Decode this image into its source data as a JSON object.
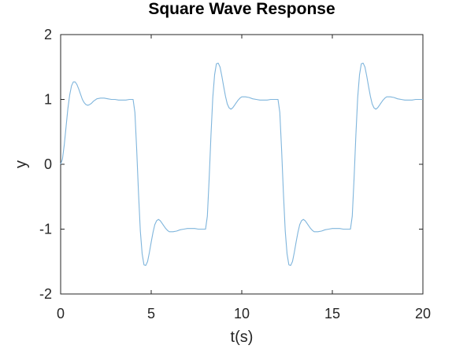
{
  "chart_data": {
    "type": "line",
    "title": "Square Wave Response",
    "xlabel": "t(s)",
    "ylabel": "y",
    "xlim": [
      0,
      20
    ],
    "ylim": [
      -2,
      2
    ],
    "xticks": [
      0,
      5,
      10,
      15,
      20
    ],
    "yticks": [
      -2,
      -1,
      0,
      1,
      2
    ],
    "xtick_labels": [
      "0",
      "5",
      "10",
      "15",
      "20"
    ],
    "ytick_labels": [
      "-2",
      "-1",
      "0",
      "1",
      "2"
    ],
    "grid": false,
    "legend": "none",
    "line_color": "#7fb5dc",
    "series": [
      {
        "x": [
          0,
          0.1,
          0.2,
          0.3,
          0.4,
          0.5,
          0.6,
          0.7,
          0.8,
          0.9,
          1.0,
          1.1,
          1.2,
          1.3,
          1.4,
          1.5,
          1.6,
          1.7,
          1.8,
          1.9,
          2.0,
          2.2,
          2.4,
          2.6,
          2.8,
          3.0,
          3.2,
          3.4,
          3.6,
          3.8,
          4.0,
          4.1,
          4.2,
          4.3,
          4.4,
          4.5,
          4.6,
          4.7,
          4.8,
          4.9,
          5.0,
          5.1,
          5.2,
          5.3,
          5.4,
          5.5,
          5.6,
          5.7,
          5.8,
          5.9,
          6.0,
          6.2,
          6.4,
          6.6,
          6.8,
          7.0,
          7.2,
          7.4,
          7.6,
          7.8,
          8.0,
          8.1,
          8.2,
          8.3,
          8.4,
          8.5,
          8.6,
          8.7,
          8.8,
          8.9,
          9.0,
          9.1,
          9.2,
          9.3,
          9.4,
          9.5,
          9.6,
          9.7,
          9.8,
          9.9,
          10.0,
          10.2,
          10.4,
          10.6,
          10.8,
          11.0,
          11.2,
          11.4,
          11.6,
          11.8,
          12.0,
          12.1,
          12.2,
          12.3,
          12.4,
          12.5,
          12.6,
          12.7,
          12.8,
          12.9,
          13.0,
          13.1,
          13.2,
          13.3,
          13.4,
          13.5,
          13.6,
          13.7,
          13.8,
          13.9,
          14.0,
          14.2,
          14.4,
          14.6,
          14.8,
          15.0,
          15.2,
          15.4,
          15.6,
          15.8,
          16.0,
          16.1,
          16.2,
          16.3,
          16.4,
          16.5,
          16.6,
          16.7,
          16.8,
          16.9,
          17.0,
          17.1,
          17.2,
          17.3,
          17.4,
          17.5,
          17.6,
          17.7,
          17.8,
          17.9,
          18.0,
          18.2,
          18.4,
          18.6,
          18.8,
          19.0,
          19.2,
          19.4,
          19.6,
          19.8,
          20.0
        ],
        "y": [
          0,
          0.08,
          0.3,
          0.58,
          0.86,
          1.07,
          1.21,
          1.27,
          1.27,
          1.23,
          1.16,
          1.08,
          1.0,
          0.95,
          0.92,
          0.91,
          0.92,
          0.94,
          0.97,
          0.99,
          1.01,
          1.02,
          1.02,
          1.01,
          1.0,
          1.0,
          0.99,
          0.99,
          0.99,
          1.0,
          1.0,
          0.8,
          0.22,
          -0.45,
          -1.03,
          -1.38,
          -1.55,
          -1.56,
          -1.5,
          -1.36,
          -1.2,
          -1.05,
          -0.93,
          -0.87,
          -0.85,
          -0.87,
          -0.91,
          -0.95,
          -0.99,
          -1.02,
          -1.04,
          -1.04,
          -1.03,
          -1.01,
          -1.0,
          -0.99,
          -0.99,
          -0.99,
          -1.0,
          -1.0,
          -1.0,
          -0.8,
          -0.22,
          0.45,
          1.03,
          1.38,
          1.55,
          1.56,
          1.5,
          1.36,
          1.2,
          1.05,
          0.93,
          0.87,
          0.85,
          0.87,
          0.91,
          0.95,
          0.99,
          1.02,
          1.04,
          1.04,
          1.03,
          1.01,
          1.0,
          0.99,
          0.99,
          0.99,
          1.0,
          1.0,
          1.0,
          0.8,
          0.22,
          -0.45,
          -1.03,
          -1.38,
          -1.55,
          -1.56,
          -1.5,
          -1.36,
          -1.2,
          -1.05,
          -0.93,
          -0.87,
          -0.85,
          -0.87,
          -0.91,
          -0.95,
          -0.99,
          -1.02,
          -1.04,
          -1.04,
          -1.03,
          -1.01,
          -1.0,
          -0.99,
          -0.99,
          -0.99,
          -1.0,
          -1.0,
          -1.0,
          -0.8,
          -0.22,
          0.45,
          1.03,
          1.38,
          1.55,
          1.56,
          1.5,
          1.36,
          1.2,
          1.05,
          0.93,
          0.87,
          0.85,
          0.87,
          0.91,
          0.95,
          0.99,
          1.02,
          1.04,
          1.04,
          1.03,
          1.01,
          1.0,
          0.99,
          0.99,
          0.99,
          1.0,
          1.0,
          1.0
        ]
      }
    ]
  }
}
